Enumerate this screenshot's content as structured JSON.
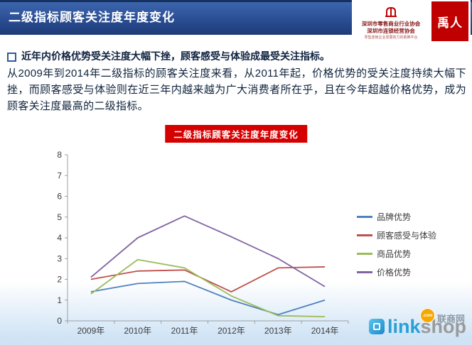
{
  "header": {
    "title": "二级指标顾客关注度年度变化",
    "assoc_logo": {
      "line1": "深圳市零售商业行业协会",
      "line2": "深圳市连锁经营协会",
      "tagline": "零售连锁企业发展有力的助推平台"
    },
    "brand_logo": {
      "text": "禹人"
    }
  },
  "body": {
    "bullet_heading": "近年内价格优势受关注度大幅下挫，顾客感受与体验成最受关注指标。",
    "paragraph": "从2009年到2014年二级指标的顾客关注度来看，从2011年起，价格优势的受关注度持续大幅下挫，而顾客感受与体验则在近三年内越来越为广大消费者所在乎，且在今年超越价格优势，成为顾客关注度最高的二级指标。",
    "chart_badge": "二级指标顾客关注度年度变化"
  },
  "chart_data": {
    "type": "line",
    "title": "二级指标顾客关注度年度变化",
    "categories": [
      "2009年",
      "2010年",
      "2011年",
      "2012年",
      "2013年",
      "2014年"
    ],
    "series": [
      {
        "name": "品牌优势",
        "color": "#4F81BD",
        "values": [
          1.4,
          1.8,
          1.9,
          1.0,
          0.3,
          1.0
        ]
      },
      {
        "name": "顾客感受与体验",
        "color": "#C0504D",
        "values": [
          2.0,
          2.4,
          2.45,
          1.4,
          2.55,
          2.6
        ]
      },
      {
        "name": "商品优势",
        "color": "#9BBB59",
        "values": [
          1.3,
          2.95,
          2.55,
          1.2,
          0.25,
          0.2
        ]
      },
      {
        "name": "价格优势",
        "color": "#8064A2",
        "values": [
          2.1,
          4.0,
          5.05,
          4.05,
          3.0,
          1.65
        ]
      }
    ],
    "xlabel": "",
    "ylabel": "",
    "ylim": [
      0,
      8
    ],
    "ytick_step": 1,
    "grid": false,
    "legend_position": "right"
  },
  "footer": {
    "logo": {
      "link": "link",
      "shop": "shop",
      "com": ".com",
      "site_name": "联商网"
    }
  },
  "colors": {
    "header_blue": "#2a4d92",
    "accent_red": "#d50000",
    "brand_logo_red": "#c00000",
    "linkshop_blue": "#2a9fd8",
    "linkshop_gray": "#9b9b9b",
    "com_badge_orange": "#f7a800",
    "bottom_gradient_blue": "#cfe3f5"
  }
}
